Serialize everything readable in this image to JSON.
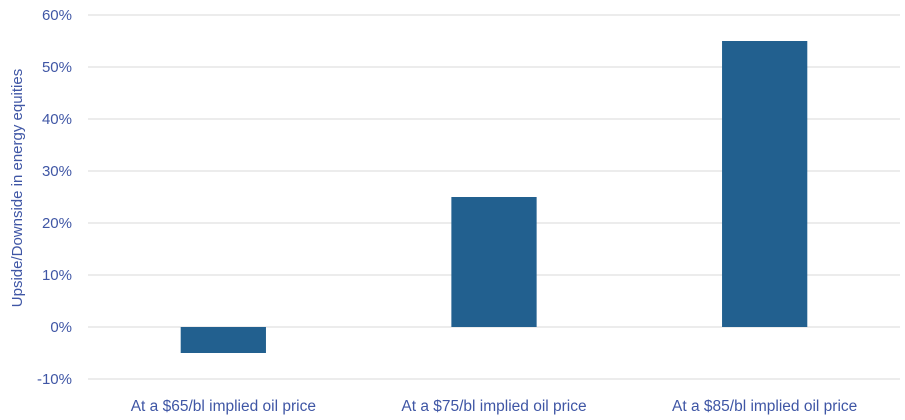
{
  "chart_data": {
    "type": "bar",
    "title": "",
    "xlabel": "",
    "ylabel": "Upside/Downside in energy equities",
    "categories": [
      "At a $65/bl implied oil price",
      "At a $75/bl implied oil price",
      "At a $85/bl implied oil price"
    ],
    "values": [
      -5,
      25,
      55
    ],
    "value_unit": "%",
    "ylim": [
      -10,
      60
    ],
    "yticks": [
      -10,
      0,
      10,
      20,
      30,
      40,
      50,
      60
    ],
    "ytick_labels": [
      "-10%",
      "0%",
      "10%",
      "20%",
      "30%",
      "40%",
      "50%",
      "60%"
    ],
    "grid": true,
    "legend": "none",
    "colors": {
      "bar": "#22608F",
      "text": "#3F56A5",
      "grid": "#D9D9D9"
    }
  }
}
